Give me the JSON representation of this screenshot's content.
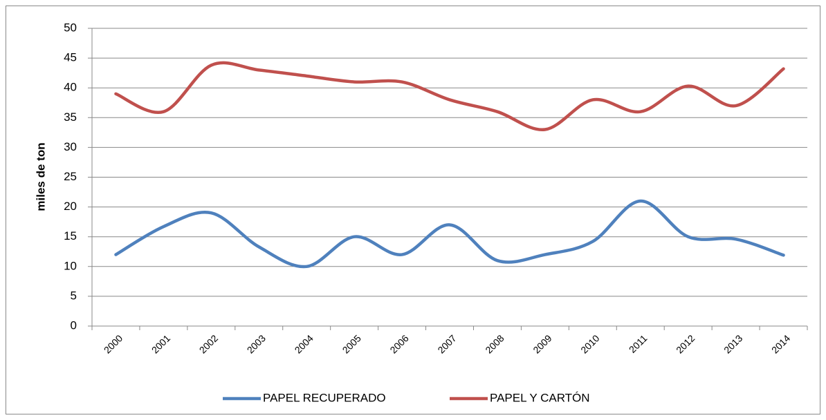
{
  "chart_data": {
    "type": "line",
    "categories": [
      "2000",
      "2001",
      "2002",
      "2003",
      "2004",
      "2005",
      "2006",
      "2007",
      "2008",
      "2009",
      "2010",
      "2011",
      "2012",
      "2013",
      "2014"
    ],
    "y_label": "miles de ton",
    "series": [
      {
        "name": "PAPEL RECUPERADO",
        "color": "#4f81bd",
        "values": [
          12,
          16.7,
          19,
          13.3,
          10,
          15,
          12,
          17,
          11,
          12,
          14.2,
          21,
          15,
          14.6,
          11.9
        ]
      },
      {
        "name": "PAPEL Y CARTÓN",
        "color": "#c0504d",
        "values": [
          39,
          36,
          43.8,
          43,
          42,
          41,
          41,
          38,
          36,
          33,
          38,
          36,
          40.3,
          37,
          43.2
        ]
      }
    ],
    "ylim": [
      0,
      50
    ],
    "yticks": [
      0,
      5,
      10,
      15,
      20,
      25,
      30,
      35,
      40,
      45,
      50
    ],
    "grid": true,
    "smooth": true,
    "legend": "bottom"
  }
}
